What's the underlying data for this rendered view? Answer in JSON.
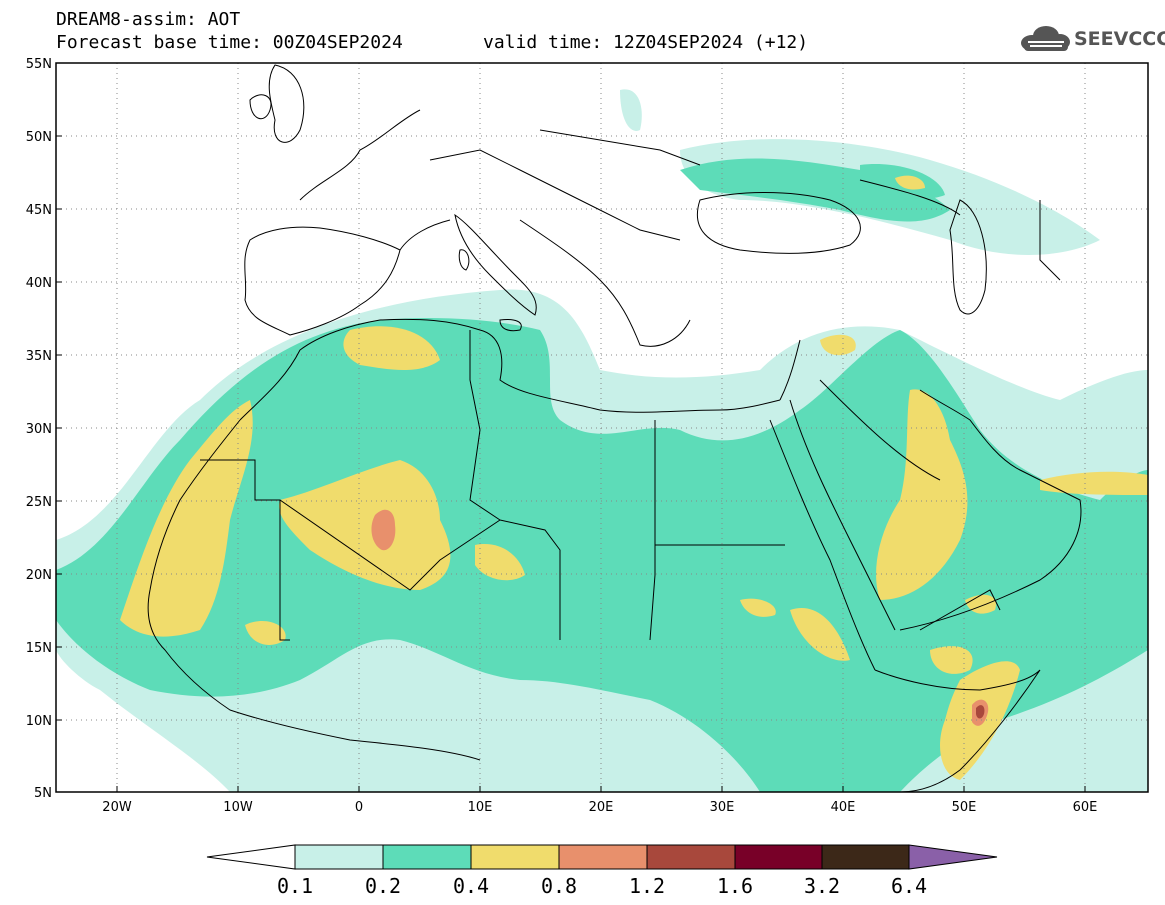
{
  "header": {
    "title": "DREAM8-assim: AOT",
    "base_time": "Forecast base time: 00Z04SEP2024",
    "valid_time": "valid time: 12Z04SEP2024 (+12)"
  },
  "logo": {
    "text": "SEEVCCC",
    "icon": "cloud-icon"
  },
  "map": {
    "lon_range": [
      -25,
      65
    ],
    "lat_range": [
      5,
      55
    ],
    "lat_labels": [
      "55N",
      "50N",
      "45N",
      "40N",
      "35N",
      "30N",
      "25N",
      "20N",
      "15N",
      "10N",
      "5N"
    ],
    "lon_labels": [
      "20W",
      "10W",
      "0",
      "10E",
      "20E",
      "30E",
      "40E",
      "50E",
      "60E"
    ],
    "grid": "dotted"
  },
  "colorbar": {
    "levels": [
      "0.1",
      "0.2",
      "0.4",
      "0.8",
      "1.2",
      "1.6",
      "3.2",
      "6.4"
    ],
    "colors": [
      "#c8f0e8",
      "#5ddcb8",
      "#f0dc6c",
      "#e8906c",
      "#a8483c",
      "#780028",
      "#3c2818",
      "#8a60a8"
    ]
  }
}
